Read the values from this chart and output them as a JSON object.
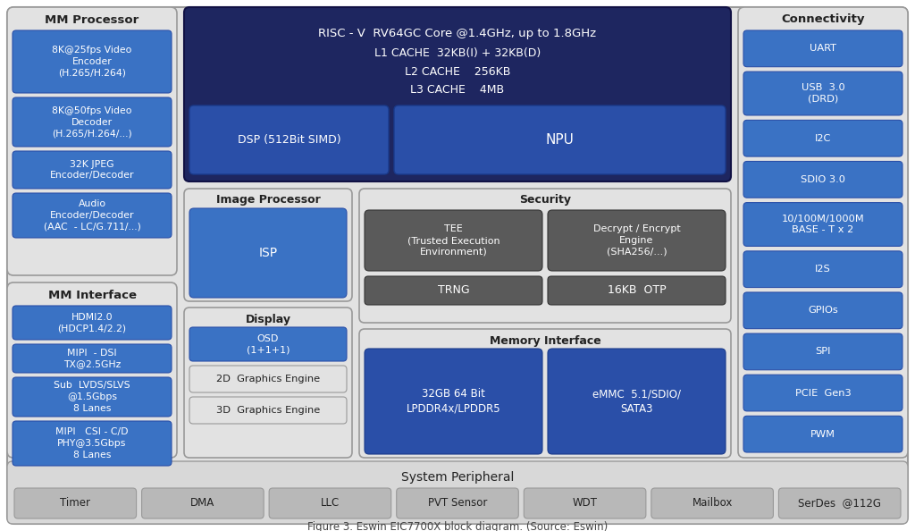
{
  "fig_width": 10.24,
  "fig_height": 5.94,
  "colors": {
    "dark_navy": "#1e2660",
    "medium_blue": "#2a4fa8",
    "blue": "#3a72c4",
    "light_gray_bg": "#d8d8d8",
    "mid_gray": "#b8b8b8",
    "section_bg": "#e2e2e2",
    "dark_gray": "#5a5a5a",
    "white": "#ffffff",
    "text_dark": "#222222",
    "edge_gray": "#999999",
    "edge_dark": "#555555"
  },
  "title": "Figure 3. Eswin EIC7700X block diagram. (Source: Eswin)",
  "bottom_labels": [
    "Timer",
    "DMA",
    "LLC",
    "PVT Sensor",
    "WDT",
    "Mailbox",
    "SerDes  @112G"
  ],
  "conn_labels": [
    "UART",
    "USB  3.0\n(DRD)",
    "I2C",
    "SDIO 3.0",
    "10/100M/1000M\nBASE - T x 2",
    "I2S",
    "GPIOs",
    "SPI",
    "PCIE  Gen3",
    "PWM"
  ]
}
